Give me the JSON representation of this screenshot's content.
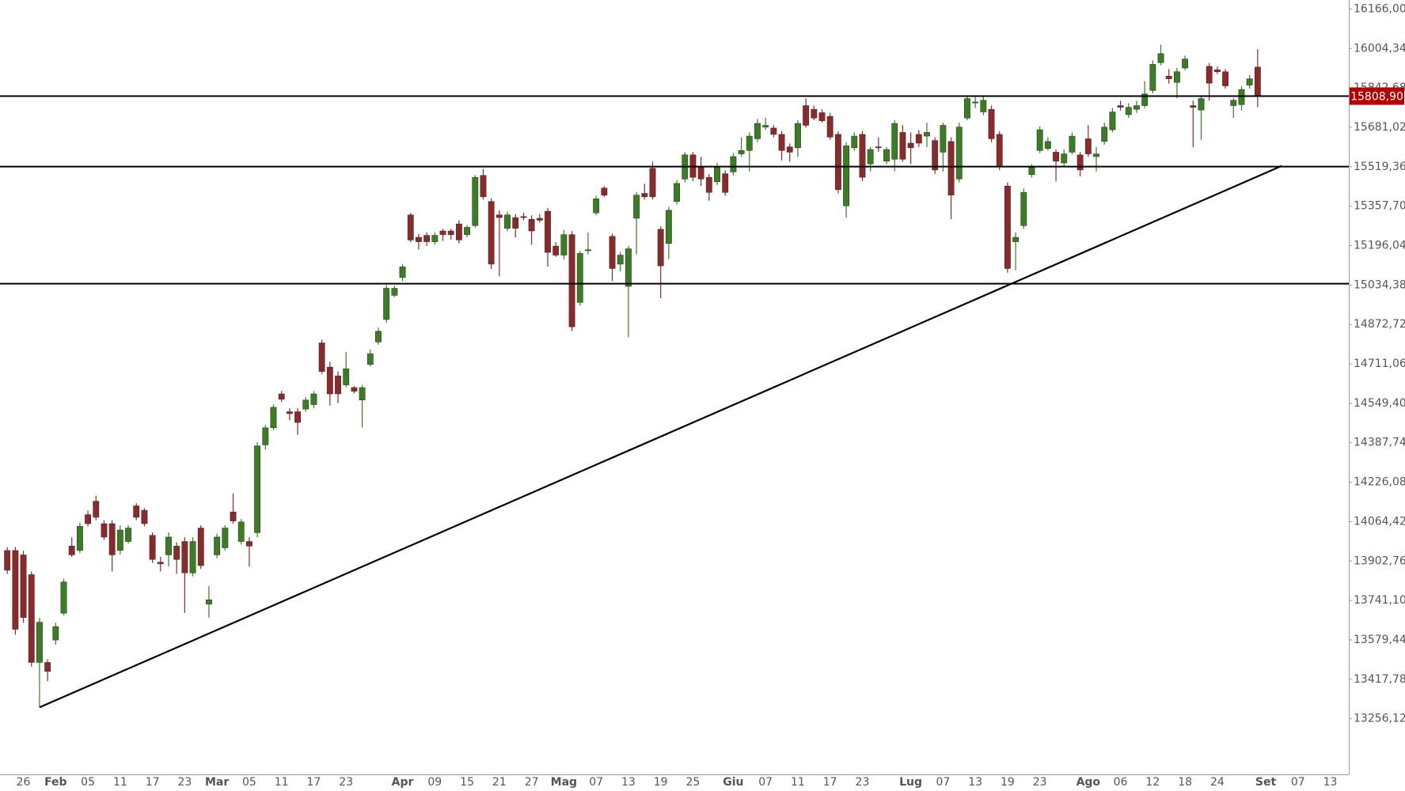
{
  "chart_data": {
    "type": "candlestick",
    "up_color": "#3a7d23",
    "down_color": "#8b2a2a",
    "categories": [
      null,
      null,
      "26",
      null,
      null,
      null,
      "Feb",
      null,
      null,
      null,
      "05",
      null,
      null,
      null,
      "11",
      null,
      null,
      null,
      "17",
      null,
      null,
      null,
      "23",
      null,
      null,
      null,
      "Mar",
      null,
      null,
      null,
      "05",
      null,
      null,
      null,
      "11",
      null,
      null,
      null,
      "17",
      null,
      null,
      null,
      "23",
      null,
      null,
      null,
      null,
      null,
      null,
      "Apr",
      null,
      null,
      null,
      "09",
      null,
      null,
      null,
      "15",
      null,
      null,
      null,
      "21",
      null,
      null,
      null,
      "27",
      null,
      null,
      null,
      "Mag",
      null,
      null,
      null,
      "07",
      null,
      null,
      null,
      "13",
      null,
      null,
      null,
      "19",
      null,
      null,
      null,
      "25",
      null,
      null,
      null,
      null,
      "Giu",
      null,
      null,
      null,
      "07",
      null,
      null,
      null,
      "11",
      null,
      null,
      null,
      "17",
      null,
      null,
      null,
      "23",
      null,
      null,
      null,
      null,
      null,
      "Lug",
      null,
      null,
      null,
      "07",
      null,
      null,
      null,
      "13",
      null,
      null,
      null,
      "19",
      null,
      null,
      null,
      "23",
      null,
      null,
      null,
      null,
      null,
      "Ago",
      null,
      null,
      null,
      "06",
      null,
      null,
      null,
      "12",
      null,
      null,
      null,
      "18",
      null,
      null,
      null,
      "24",
      null,
      null,
      null,
      null,
      null,
      "Set",
      null,
      null,
      null,
      "07",
      null,
      null,
      null,
      "13",
      null
    ],
    "open": [
      13946,
      13946,
      13928,
      13847,
      13487,
      13487,
      13579,
      13689,
      13964,
      13946,
      14093,
      14148,
      14056,
      14056,
      13946,
      13983,
      14129,
      14111,
      14008,
      13898,
      13928,
      13964,
      13983,
      13854,
      14038,
      13726,
      13928,
      13957,
      14104,
      13983,
      13983,
      14019,
      14379,
      14449,
      14588,
      14515,
      14515,
      14526,
      14544,
      14797,
      14698,
      14662,
      14625,
      14614,
      14563,
      14709,
      14801,
      14893,
      14992,
      15065,
      15322,
      15230,
      15238,
      15212,
      15256,
      15256,
      15285,
      15241,
      15278,
      15484,
      15377,
      15322,
      15267,
      15311,
      15315,
      15304,
      15308,
      15337,
      15194,
      15157,
      15241,
      14963,
      15175,
      15330,
      15432,
      15234,
      15120,
      15029,
      15308,
      15410,
      15513,
      15263,
      15205,
      15377,
      15469,
      15568,
      15520,
      15476,
      15458,
      15491,
      15498,
      15572,
      15586,
      15634,
      15682,
      15678,
      15652,
      15601,
      15597,
      15770,
      15755,
      15741,
      15726,
      15652,
      15359,
      15597,
      15652,
      15531,
      15601,
      15542,
      15550,
      15660,
      15616,
      15652,
      15645,
      15627,
      15579,
      15623,
      15469,
      15719,
      15781,
      15744,
      15755,
      15652,
      15440,
      15212,
      15278,
      15487,
      15586,
      15594,
      15579,
      15535,
      15579,
      15568,
      15634,
      15561,
      15623,
      15671,
      15770,
      15733,
      15755,
      15770,
      15832,
      15946,
      15891,
      15865,
      15924,
      15770,
      15752,
      15931,
      15917,
      15909,
      15770,
      15774,
      15854,
      15928,
      null,
      null,
      null,
      null,
      null,
      null,
      null,
      null,
      null,
      null
    ],
    "high": [
      13960,
      13960,
      13945,
      13860,
      13670,
      13500,
      13650,
      13830,
      14000,
      14060,
      14110,
      14170,
      14070,
      14070,
      14050,
      14050,
      14140,
      14120,
      14020,
      13920,
      14020,
      13980,
      14000,
      14000,
      14050,
      13800,
      14015,
      14050,
      14180,
      14075,
      14000,
      14390,
      14460,
      14545,
      14600,
      14530,
      14530,
      14575,
      14600,
      14810,
      14720,
      14680,
      14760,
      14620,
      14625,
      14770,
      14860,
      15035,
      15030,
      15120,
      15330,
      15245,
      15250,
      15250,
      15265,
      15265,
      15300,
      15280,
      15485,
      15510,
      15390,
      15340,
      15335,
      15325,
      15330,
      15320,
      15325,
      15350,
      15210,
      15260,
      15255,
      15175,
      15250,
      15400,
      15440,
      15245,
      15170,
      15195,
      15415,
      15450,
      15540,
      15275,
      15355,
      15465,
      15580,
      15580,
      15560,
      15490,
      15535,
      15505,
      15575,
      15640,
      15660,
      15715,
      15720,
      15690,
      15665,
      15615,
      15710,
      15800,
      15770,
      15755,
      15740,
      15665,
      15620,
      15660,
      15665,
      15600,
      15640,
      15600,
      15710,
      15690,
      15660,
      15670,
      15700,
      15640,
      15700,
      15640,
      15700,
      15810,
      15810,
      15810,
      15770,
      15665,
      15455,
      15250,
      15430,
      15530,
      15685,
      15640,
      15590,
      15590,
      15660,
      15580,
      15690,
      15600,
      15700,
      15760,
      15790,
      15780,
      15790,
      15870,
      15955,
      16020,
      15920,
      15925,
      15975,
      15790,
      15810,
      15945,
      15930,
      15920,
      15800,
      15850,
      15895,
      16001,
      null,
      null,
      null,
      null,
      null,
      null,
      null,
      null,
      null,
      null
    ],
    "low": [
      13850,
      13600,
      13650,
      13470,
      13304,
      13410,
      13560,
      13680,
      13920,
      13935,
      14045,
      14070,
      13990,
      13860,
      13930,
      13975,
      14070,
      14045,
      13895,
      13860,
      13880,
      13850,
      13690,
      13840,
      13870,
      13671,
      13915,
      13945,
      14055,
      13970,
      13880,
      14000,
      14360,
      14440,
      14555,
      14480,
      14420,
      14515,
      14530,
      14670,
      14540,
      14550,
      14615,
      14590,
      14450,
      14700,
      14790,
      14880,
      14985,
      15050,
      15210,
      15180,
      15195,
      15200,
      15215,
      15220,
      15205,
      15230,
      15270,
      15385,
      15100,
      15070,
      15255,
      15230,
      15300,
      15200,
      15290,
      15110,
      15150,
      15140,
      14845,
      14950,
      15160,
      15320,
      15395,
      15050,
      15090,
      14820,
      15160,
      15385,
      15385,
      14980,
      15140,
      15365,
      15455,
      15460,
      15440,
      15380,
      15445,
      15400,
      15485,
      15560,
      15500,
      15620,
      15670,
      15640,
      15545,
      15540,
      15560,
      15680,
      15710,
      15700,
      15630,
      15410,
      15311,
      15585,
      15460,
      15500,
      15580,
      15530,
      15500,
      15540,
      15530,
      15600,
      15600,
      15490,
      15500,
      15304,
      15455,
      15710,
      15760,
      15730,
      15620,
      15505,
      15085,
      15095,
      15265,
      15475,
      15575,
      15585,
      15460,
      15520,
      15570,
      15480,
      15560,
      15500,
      15610,
      15660,
      15750,
      15720,
      15740,
      15760,
      15820,
      15935,
      15860,
      15800,
      15915,
      15600,
      15630,
      15790,
      15900,
      15840,
      15720,
      15750,
      15840,
      15764,
      null,
      null,
      null,
      null,
      null,
      null,
      null,
      null,
      null,
      null
    ],
    "close": [
      13865,
      13623,
      13671,
      13487,
      13652,
      13450,
      13634,
      13817,
      13928,
      14045,
      14056,
      14082,
      14001,
      13928,
      14030,
      14038,
      14082,
      14056,
      13909,
      13891,
      14001,
      13909,
      13854,
      13983,
      13884,
      13744,
      14001,
      14038,
      14067,
      14063,
      13964,
      14375,
      14449,
      14533,
      14566,
      14507,
      14471,
      14563,
      14588,
      14680,
      14588,
      14588,
      14691,
      14599,
      14614,
      14753,
      14845,
      15021,
      15021,
      15109,
      15219,
      15212,
      15212,
      15238,
      15241,
      15241,
      15219,
      15271,
      15476,
      15396,
      15120,
      15311,
      15322,
      15267,
      15311,
      15256,
      15300,
      15168,
      15157,
      15241,
      14863,
      15164,
      15179,
      15388,
      15403,
      15102,
      15157,
      15183,
      15403,
      15396,
      15396,
      15113,
      15341,
      15451,
      15568,
      15476,
      15469,
      15414,
      15520,
      15414,
      15561,
      15586,
      15645,
      15697,
      15689,
      15652,
      15586,
      15579,
      15697,
      15689,
      15719,
      15708,
      15641,
      15425,
      15605,
      15645,
      15476,
      15590,
      15597,
      15590,
      15697,
      15550,
      15597,
      15616,
      15660,
      15506,
      15689,
      15403,
      15682,
      15799,
      15785,
      15792,
      15634,
      15520,
      15102,
      15230,
      15414,
      15517,
      15671,
      15623,
      15542,
      15572,
      15645,
      15506,
      15572,
      15572,
      15682,
      15744,
      15763,
      15763,
      15770,
      15818,
      15939,
      15983,
      15880,
      15909,
      15961,
      15763,
      15799,
      15862,
      15909,
      15851,
      15792,
      15836,
      15880,
      15808.9,
      null,
      null,
      null,
      null,
      null,
      null,
      null,
      null,
      null,
      null
    ],
    "xlim": [
      -0.9,
      166.3
    ],
    "ylim": [
      13028,
      16203
    ],
    "yticks": [
      {
        "value": 16166.0,
        "label": "16166,00"
      },
      {
        "value": 16004.34,
        "label": "16004,34"
      },
      {
        "value": 15842.68,
        "label": "15842,68"
      },
      {
        "value": 15681.02,
        "label": "15681,02"
      },
      {
        "value": 15519.36,
        "label": "15519,36"
      },
      {
        "value": 15357.7,
        "label": "15357,70"
      },
      {
        "value": 15196.04,
        "label": "15196,04"
      },
      {
        "value": 15034.38,
        "label": "15034,38"
      },
      {
        "value": 14872.72,
        "label": "14872,72"
      },
      {
        "value": 14711.06,
        "label": "14711,06"
      },
      {
        "value": 14549.4,
        "label": "14549,40"
      },
      {
        "value": 14387.74,
        "label": "14387,74"
      },
      {
        "value": 14226.08,
        "label": "14226,08"
      },
      {
        "value": 14064.42,
        "label": "14064,42"
      },
      {
        "value": 13902.76,
        "label": "13902,76"
      },
      {
        "value": 13741.1,
        "label": "13741,10"
      },
      {
        "value": 13579.44,
        "label": "13579,44"
      },
      {
        "value": 13417.78,
        "label": "13417,78"
      },
      {
        "value": 13256.12,
        "label": "13256,12"
      }
    ],
    "horizontal_lines": [
      {
        "value": 15808.9,
        "label": "15808,90"
      },
      {
        "value": 15520
      },
      {
        "value": 15040
      }
    ],
    "price_tag_color": "#b00000",
    "trendline": {
      "x": [
        4,
        158
      ],
      "y": [
        13303,
        15523
      ]
    }
  }
}
